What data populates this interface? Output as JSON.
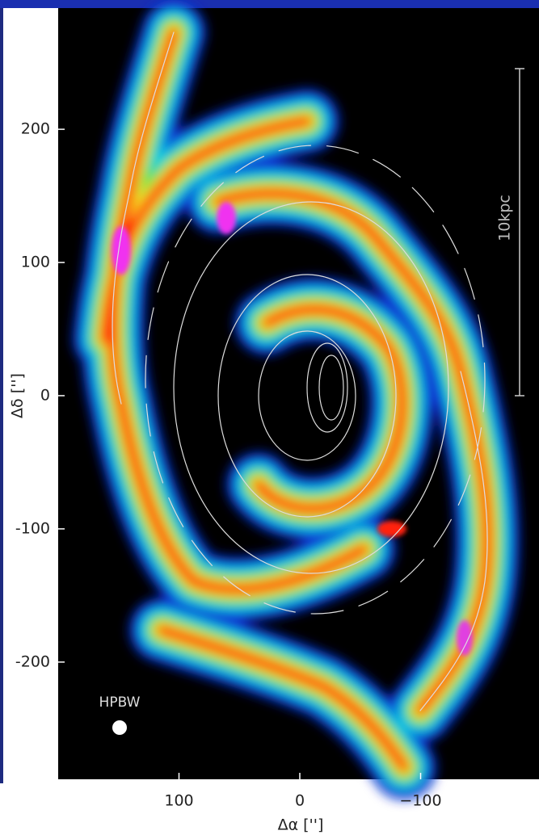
{
  "chart_data": {
    "type": "image",
    "xlabel": "Δα ['']",
    "ylabel": "Δδ ['']",
    "xlim": [
      200,
      -198
    ],
    "ylim": [
      -288,
      291
    ],
    "xticks": [
      100,
      0,
      {
        "value": -100,
        "label": "−100"
      }
    ],
    "yticks": [
      200,
      100,
      0,
      -100,
      -200
    ],
    "annotations": [
      "10kpc",
      "HPBW"
    ]
  }
}
